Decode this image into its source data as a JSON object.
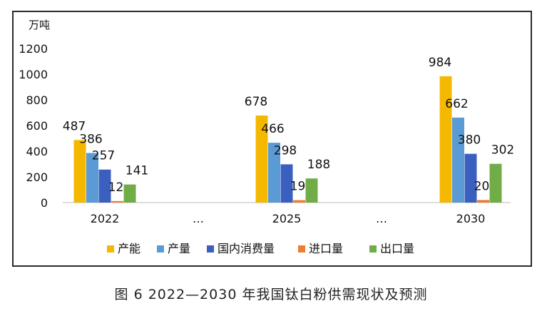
{
  "caption": "图 6  2022—2030 年我国钛白粉供需现状及预测",
  "chart_data": {
    "type": "bar",
    "unit_label": "万吨",
    "categories": [
      "2022",
      "…",
      "2025",
      "…",
      "2030"
    ],
    "ylim": [
      0,
      1200
    ],
    "yticks": [
      "0",
      "200",
      "400",
      "600",
      "800",
      "1000",
      "1200"
    ],
    "grid": false,
    "legend_position": "bottom",
    "series": [
      {
        "name": "产能",
        "color": "#F5B800",
        "values": [
          487,
          null,
          678,
          null,
          984
        ]
      },
      {
        "name": "产量",
        "color": "#5B9BD5",
        "values": [
          386,
          null,
          466,
          null,
          662
        ]
      },
      {
        "name": "国内消费量",
        "color": "#3A5FBF",
        "values": [
          257,
          null,
          298,
          null,
          380
        ]
      },
      {
        "name": "进口量",
        "color": "#ED7D31",
        "values": [
          12,
          null,
          19,
          null,
          20
        ]
      },
      {
        "name": "出口量",
        "color": "#70AD47",
        "values": [
          141,
          null,
          188,
          null,
          302
        ]
      }
    ]
  }
}
